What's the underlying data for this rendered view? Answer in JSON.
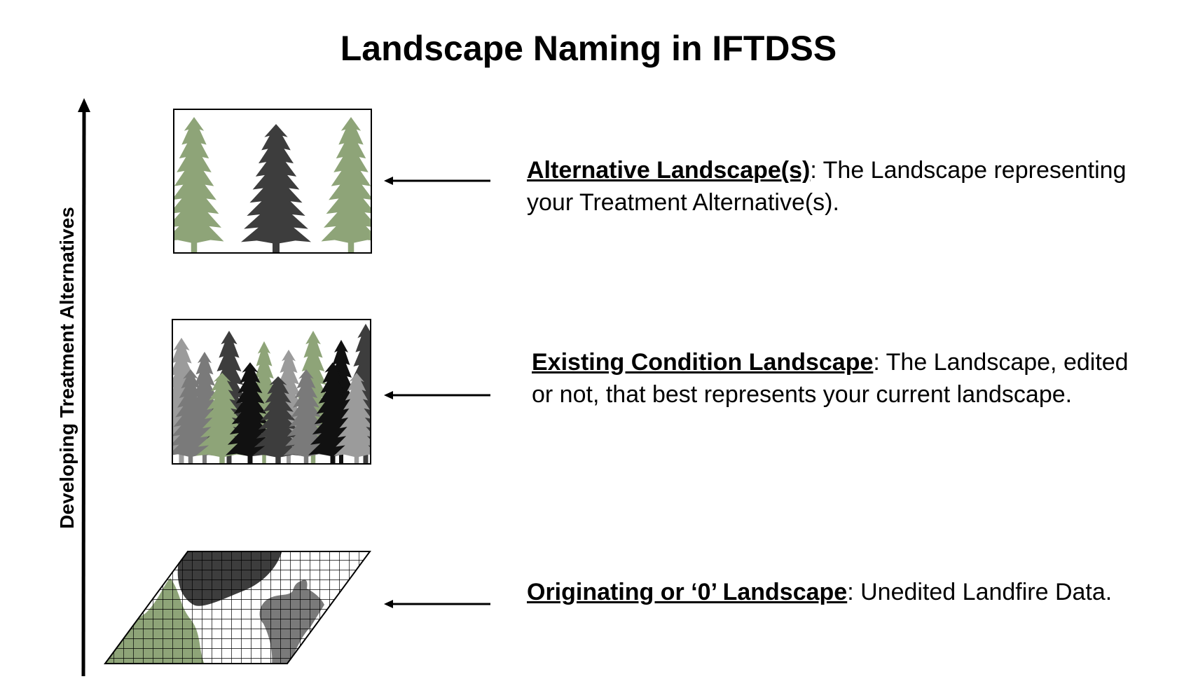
{
  "title": "Landscape Naming in IFTDSS",
  "axis": {
    "label": "Developing Treatment Alternatives"
  },
  "colors": {
    "sage": "#8ea478",
    "dark": "#3d3d3d",
    "mid": "#7a7a7a",
    "light": "#9b9b9b",
    "black": "#111111"
  },
  "levels": [
    {
      "term": "Alternative Landscape(s)",
      "description": ": The Landscape representing your Treatment Alternative(s)."
    },
    {
      "term": "Existing Condition Landscape",
      "description": ": The Landscape, edited or not, that best represents your current landscape."
    },
    {
      "term": "Originating or ‘0’ Landscape",
      "description": ": Unedited Landfire Data."
    }
  ]
}
